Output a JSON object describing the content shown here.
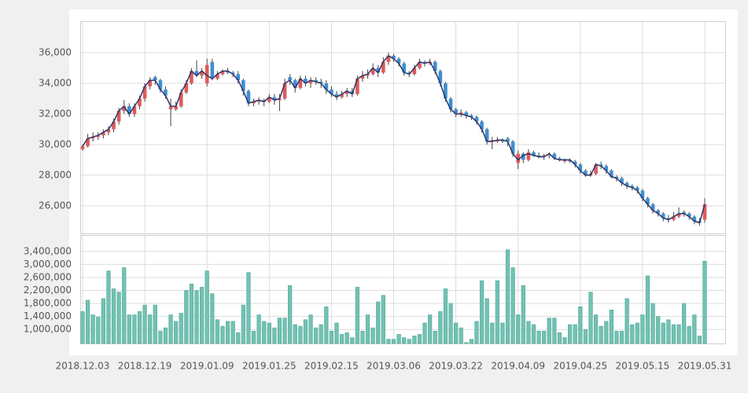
{
  "chart_data": {
    "type": "candlestick",
    "categories": [
      "2018.12.03",
      null,
      null,
      null,
      null,
      null,
      null,
      null,
      null,
      null,
      null,
      null,
      "2018.12.19",
      null,
      null,
      null,
      null,
      null,
      null,
      null,
      null,
      null,
      null,
      null,
      "2019.01.09",
      null,
      null,
      null,
      null,
      null,
      null,
      null,
      null,
      null,
      null,
      null,
      "2019.01.25",
      null,
      null,
      null,
      null,
      null,
      null,
      null,
      null,
      null,
      null,
      null,
      "2019.02.15",
      null,
      null,
      null,
      null,
      null,
      null,
      null,
      null,
      null,
      null,
      null,
      "2019.03.06",
      null,
      null,
      null,
      null,
      null,
      null,
      null,
      null,
      null,
      null,
      null,
      "2019.03.22",
      null,
      null,
      null,
      null,
      null,
      null,
      null,
      null,
      null,
      null,
      null,
      "2019.04.09",
      null,
      null,
      null,
      null,
      null,
      null,
      null,
      null,
      null,
      null,
      null,
      "2019.04.25",
      null,
      null,
      null,
      null,
      null,
      null,
      null,
      null,
      null,
      null,
      null,
      "2019.05.15",
      null,
      null,
      null,
      null,
      null,
      null,
      null,
      null,
      null,
      null,
      null,
      "2019.05.31"
    ],
    "candles": [
      [
        29700,
        30000,
        29600,
        29900
      ],
      [
        29900,
        30700,
        29800,
        30400
      ],
      [
        30400,
        30800,
        30200,
        30500
      ],
      [
        30500,
        30800,
        30300,
        30600
      ],
      [
        30600,
        31000,
        30400,
        30800
      ],
      [
        30800,
        31200,
        30600,
        31000
      ],
      [
        31000,
        31700,
        30800,
        31500
      ],
      [
        31500,
        32400,
        31300,
        32200
      ],
      [
        32200,
        32900,
        32000,
        32500
      ],
      [
        32500,
        32700,
        31800,
        32000
      ],
      [
        32000,
        32700,
        31800,
        32500
      ],
      [
        32500,
        33200,
        32300,
        33000
      ],
      [
        33000,
        34000,
        32800,
        33800
      ],
      [
        33800,
        34400,
        33600,
        34200
      ],
      [
        34400,
        34500,
        33900,
        34200
      ],
      [
        34200,
        34300,
        33400,
        33600
      ],
      [
        33600,
        33800,
        33000,
        33200
      ],
      [
        32300,
        33000,
        31200,
        32500
      ],
      [
        32300,
        32800,
        32200,
        32500
      ],
      [
        32500,
        33600,
        32400,
        33400
      ],
      [
        33400,
        34200,
        33300,
        34000
      ],
      [
        34000,
        35000,
        33900,
        34800
      ],
      [
        34800,
        35500,
        34400,
        34500
      ],
      [
        34500,
        35000,
        34300,
        34800
      ],
      [
        34000,
        35600,
        33800,
        35200
      ],
      [
        35400,
        35600,
        34200,
        34300
      ],
      [
        34300,
        34800,
        34200,
        34600
      ],
      [
        34600,
        34900,
        34500,
        34800
      ],
      [
        34800,
        35000,
        34600,
        34700
      ],
      [
        34700,
        34800,
        34400,
        34600
      ],
      [
        34600,
        34800,
        34000,
        34200
      ],
      [
        34200,
        34300,
        33200,
        33500
      ],
      [
        33500,
        33600,
        32500,
        32700
      ],
      [
        32700,
        33000,
        32500,
        32800
      ],
      [
        32800,
        33100,
        32600,
        32900
      ],
      [
        32900,
        33000,
        32500,
        32800
      ],
      [
        32800,
        33300,
        32700,
        33100
      ],
      [
        33100,
        33300,
        32600,
        32900
      ],
      [
        32900,
        33300,
        32200,
        33000
      ],
      [
        33000,
        34300,
        32900,
        34000
      ],
      [
        34400,
        34600,
        33900,
        34200
      ],
      [
        34200,
        34300,
        33400,
        33700
      ],
      [
        33700,
        34500,
        33600,
        34300
      ],
      [
        34300,
        34500,
        33800,
        34000
      ],
      [
        34000,
        34400,
        33700,
        34200
      ],
      [
        34200,
        34400,
        33900,
        34100
      ],
      [
        34100,
        34300,
        33700,
        34000
      ],
      [
        34000,
        34200,
        33300,
        33600
      ],
      [
        33600,
        33800,
        33100,
        33300
      ],
      [
        33300,
        33500,
        32900,
        33100
      ],
      [
        33100,
        33500,
        33000,
        33300
      ],
      [
        33300,
        33700,
        33100,
        33500
      ],
      [
        33500,
        33700,
        33100,
        33300
      ],
      [
        33300,
        34500,
        33200,
        34300
      ],
      [
        34300,
        34800,
        34100,
        34500
      ],
      [
        34500,
        34900,
        34300,
        34600
      ],
      [
        34600,
        35300,
        34500,
        35000
      ],
      [
        35000,
        35200,
        34400,
        34700
      ],
      [
        34700,
        35700,
        34600,
        35400
      ],
      [
        35400,
        36000,
        35200,
        35800
      ],
      [
        35800,
        35900,
        35400,
        35600
      ],
      [
        35600,
        35700,
        35100,
        35300
      ],
      [
        35300,
        35400,
        34500,
        34700
      ],
      [
        34700,
        34800,
        34400,
        34600
      ],
      [
        34600,
        35200,
        34500,
        35000
      ],
      [
        35000,
        35600,
        34900,
        35400
      ],
      [
        35400,
        35500,
        35100,
        35300
      ],
      [
        35300,
        35600,
        35200,
        35400
      ],
      [
        35400,
        35500,
        34600,
        34800
      ],
      [
        34800,
        34900,
        33800,
        34000
      ],
      [
        34000,
        34100,
        32800,
        33000
      ],
      [
        33000,
        33100,
        32100,
        32300
      ],
      [
        32300,
        32400,
        31800,
        32000
      ],
      [
        32000,
        32300,
        31800,
        32100
      ],
      [
        32100,
        32200,
        31700,
        31900
      ],
      [
        31900,
        32000,
        31600,
        31800
      ],
      [
        31800,
        31900,
        31300,
        31500
      ],
      [
        31500,
        31600,
        30800,
        31000
      ],
      [
        31000,
        31100,
        30000,
        30200
      ],
      [
        30200,
        30500,
        29700,
        30300
      ],
      [
        30200,
        30500,
        30100,
        30300
      ],
      [
        30300,
        30400,
        30100,
        30200
      ],
      [
        30400,
        30500,
        29900,
        30200
      ],
      [
        30200,
        30300,
        29200,
        29400
      ],
      [
        28800,
        29600,
        28400,
        29400
      ],
      [
        29400,
        29500,
        28800,
        29000
      ],
      [
        29000,
        29700,
        28900,
        29500
      ],
      [
        29500,
        29600,
        29200,
        29300
      ],
      [
        29300,
        29500,
        29100,
        29200
      ],
      [
        29200,
        29400,
        29000,
        29300
      ],
      [
        29300,
        29500,
        29100,
        29400
      ],
      [
        29400,
        29500,
        29000,
        29100
      ],
      [
        29100,
        29200,
        28900,
        29000
      ],
      [
        28900,
        29100,
        28800,
        29000
      ],
      [
        29000,
        29100,
        28800,
        28900
      ],
      [
        28900,
        29000,
        28500,
        28700
      ],
      [
        28700,
        28800,
        28100,
        28300
      ],
      [
        28300,
        28400,
        27900,
        28000
      ],
      [
        28000,
        28300,
        27900,
        28100
      ],
      [
        28100,
        28800,
        28000,
        28700
      ],
      [
        28700,
        28900,
        28400,
        28600
      ],
      [
        28600,
        28700,
        28100,
        28300
      ],
      [
        28300,
        28400,
        27800,
        27900
      ],
      [
        27900,
        28000,
        27600,
        27800
      ],
      [
        27800,
        27900,
        27300,
        27500
      ],
      [
        27500,
        27600,
        27100,
        27300
      ],
      [
        27300,
        27400,
        27000,
        27200
      ],
      [
        27200,
        27300,
        26800,
        27000
      ],
      [
        27000,
        27100,
        26300,
        26500
      ],
      [
        26500,
        26600,
        25900,
        26100
      ],
      [
        26100,
        26200,
        25500,
        25700
      ],
      [
        25700,
        25800,
        25300,
        25500
      ],
      [
        25500,
        25600,
        25000,
        25200
      ],
      [
        25200,
        25400,
        24900,
        25100
      ],
      [
        25100,
        25600,
        25000,
        25300
      ],
      [
        25300,
        25900,
        25200,
        25500
      ],
      [
        25600,
        25700,
        25300,
        25500
      ],
      [
        25500,
        25600,
        25100,
        25300
      ],
      [
        25300,
        25400,
        24800,
        25000
      ],
      [
        25000,
        25200,
        24700,
        24900
      ],
      [
        25100,
        26500,
        24900,
        26100
      ]
    ],
    "up_color": "#e05a5a",
    "down_color": "#3f8fd2",
    "line": {
      "color": "#2b3566",
      "values": [
        29900,
        30400,
        30500,
        30600,
        30800,
        31000,
        31500,
        32200,
        32500,
        32000,
        32500,
        33000,
        33800,
        34200,
        34200,
        33600,
        33200,
        32500,
        32500,
        33400,
        34000,
        34800,
        34500,
        34800,
        34500,
        34300,
        34600,
        34800,
        34800,
        34600,
        34200,
        33500,
        32700,
        32800,
        32900,
        32800,
        33100,
        32900,
        33000,
        34000,
        34200,
        33700,
        34300,
        34000,
        34200,
        34100,
        34000,
        33600,
        33300,
        33100,
        33300,
        33500,
        33300,
        34300,
        34500,
        34600,
        35000,
        34700,
        35400,
        35800,
        35600,
        35300,
        34700,
        34600,
        35000,
        35400,
        35300,
        35400,
        34800,
        34000,
        33000,
        32300,
        32000,
        32000,
        31900,
        31800,
        31500,
        31000,
        30200,
        30200,
        30300,
        30300,
        30200,
        29400,
        29000,
        29300,
        29400,
        29300,
        29200,
        29200,
        29400,
        29100,
        29000,
        29000,
        29000,
        28700,
        28300,
        28000,
        28000,
        28700,
        28600,
        28300,
        27900,
        27800,
        27500,
        27300,
        27200,
        27000,
        26500,
        26100,
        25700,
        25500,
        25200,
        25100,
        25300,
        25500,
        25500,
        25300,
        25000,
        24900,
        26100
      ]
    },
    "volume": {
      "axis": "y2",
      "color": "#72c2b3",
      "values": [
        1550000,
        1900000,
        1450000,
        1380000,
        1950000,
        2800000,
        2250000,
        2150000,
        2900000,
        1450000,
        1450000,
        1550000,
        1750000,
        1450000,
        1750000,
        950000,
        1050000,
        1450000,
        1250000,
        1500000,
        2200000,
        2400000,
        2200000,
        2300000,
        2800000,
        2100000,
        1300000,
        1100000,
        1250000,
        1250000,
        900000,
        1750000,
        2750000,
        950000,
        1450000,
        1250000,
        1200000,
        1050000,
        1350000,
        1350000,
        2350000,
        1150000,
        1100000,
        1300000,
        1450000,
        1050000,
        1150000,
        1700000,
        950000,
        1200000,
        850000,
        900000,
        750000,
        2300000,
        950000,
        1450000,
        1050000,
        1850000,
        2050000,
        700000,
        700000,
        850000,
        750000,
        700000,
        800000,
        850000,
        1200000,
        1450000,
        950000,
        1550000,
        2250000,
        1800000,
        1200000,
        1050000,
        600000,
        700000,
        1250000,
        2500000,
        1950000,
        1200000,
        2500000,
        1200000,
        3450000,
        2900000,
        1450000,
        2350000,
        1250000,
        1150000,
        950000,
        950000,
        1350000,
        1350000,
        900000,
        750000,
        1150000,
        1150000,
        1700000,
        1000000,
        2150000,
        1450000,
        1100000,
        1250000,
        1600000,
        950000,
        950000,
        1950000,
        1150000,
        1200000,
        1450000,
        2650000,
        1800000,
        1400000,
        1200000,
        1300000,
        1150000,
        1150000,
        1800000,
        1100000,
        1450000,
        800000,
        3100000
      ]
    },
    "ylim": [
      24200,
      38000
    ],
    "yticks": [
      {
        "value": 26000,
        "label": "26,000"
      },
      {
        "value": 28000,
        "label": "28,000"
      },
      {
        "value": 30000,
        "label": "30,000"
      },
      {
        "value": 32000,
        "label": "32,000"
      },
      {
        "value": 34000,
        "label": "34,000"
      },
      {
        "value": 36000,
        "label": "36,000"
      }
    ],
    "y2lim": [
      570000,
      3880000
    ],
    "y2ticks": [
      {
        "value": 1000000,
        "label": "1,000,000"
      },
      {
        "value": 1400000,
        "label": "1,400,000"
      },
      {
        "value": 1800000,
        "label": "1,800,000"
      },
      {
        "value": 2200000,
        "label": "2,200,000"
      },
      {
        "value": 2600000,
        "label": "2,600,000"
      },
      {
        "value": 3000000,
        "label": "3,000,000"
      },
      {
        "value": 3400000,
        "label": "3,400,000"
      }
    ],
    "grid": true
  }
}
